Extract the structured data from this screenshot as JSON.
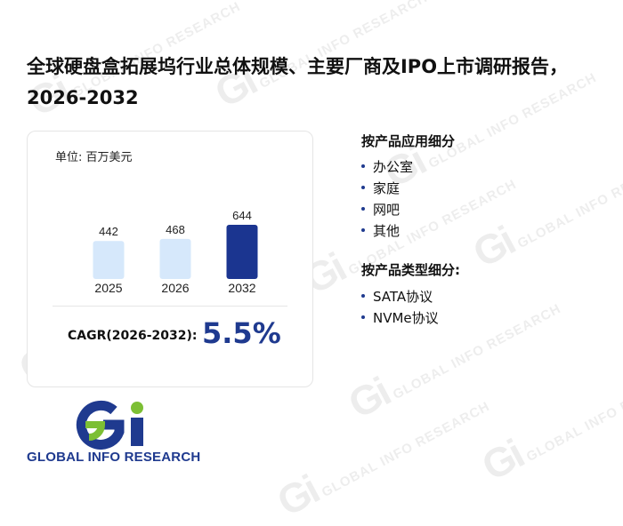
{
  "title": "全球硬盘盒拓展坞行业总体规模、主要厂商及IPO上市调研报告，2026-2032",
  "unit_label": "单位: 百万美元",
  "chart_data": {
    "type": "bar",
    "categories": [
      "2025",
      "2026",
      "2032"
    ],
    "values": [
      442,
      468,
      644
    ],
    "title": "",
    "xlabel": "",
    "ylabel": "",
    "ylim": [
      0,
      644
    ],
    "grid": false,
    "colors": [
      "#d6e8fb",
      "#d6e8fb",
      "#1b3590"
    ]
  },
  "cagr": {
    "label": "CAGR(2026-2032):",
    "value": "5.5%"
  },
  "segments": {
    "application_title": "按产品应用细分",
    "application_items": [
      "办公室",
      "家庭",
      "网吧",
      "其他"
    ],
    "type_title": "按产品类型细分:",
    "type_items": [
      "SATA协议",
      "NVMe协议"
    ]
  },
  "logo": {
    "text": "GLOBAL INFO RESEARCH",
    "mark": "Gi"
  },
  "colors": {
    "accent": "#1f3a8f",
    "bar_light": "#d6e8fb",
    "bar_dark": "#1b3590",
    "logo_green": "#7cbf34"
  }
}
